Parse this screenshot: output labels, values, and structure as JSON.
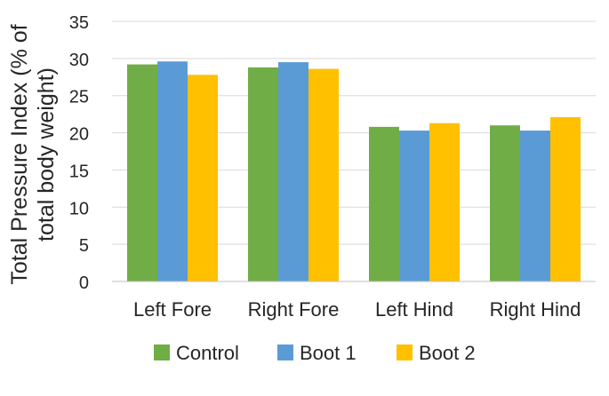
{
  "chart_data": {
    "type": "bar",
    "title": "",
    "xlabel": "",
    "ylabel": "Total Pressure Index (% of total body weight)",
    "ylabel_lines": [
      "Total Pressure Index (% of",
      "total body weight)"
    ],
    "ylim": [
      0,
      35
    ],
    "yticks": [
      0,
      5,
      10,
      15,
      20,
      25,
      30,
      35
    ],
    "grid": "horizontal",
    "legend_position": "bottom",
    "categories": [
      "Left Fore",
      "Right Fore",
      "Left Hind",
      "Right Hind"
    ],
    "series": [
      {
        "name": "Control",
        "color": "#70ad47",
        "values": [
          29.2,
          28.8,
          20.8,
          21.0
        ]
      },
      {
        "name": "Boot 1",
        "color": "#5b9bd5",
        "values": [
          29.6,
          29.5,
          20.3,
          20.3
        ]
      },
      {
        "name": "Boot 2",
        "color": "#ffc000",
        "values": [
          27.8,
          28.6,
          21.3,
          22.1
        ]
      }
    ]
  },
  "colors": {
    "gridline": "#d9d9d9",
    "axis": "#bfbfbf",
    "text": "#262626",
    "background": "#ffffff"
  }
}
